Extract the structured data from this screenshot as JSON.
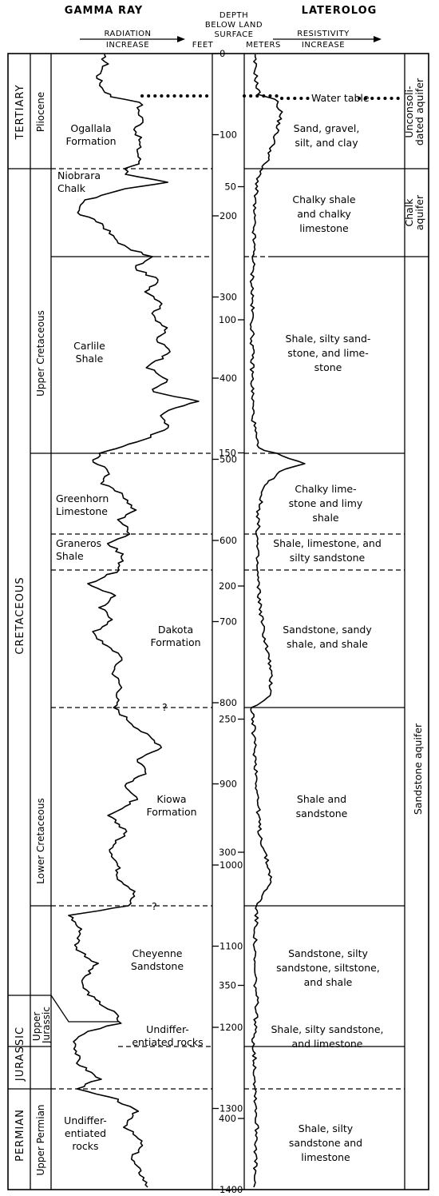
{
  "headers": {
    "gamma_ray": "GAMMA RAY",
    "radiation": "RADIATION",
    "increase_left": "INCREASE",
    "depth_line1": "DEPTH",
    "depth_line2": "BELOW LAND",
    "depth_line3": "SURFACE",
    "feet": "FEET",
    "meters": "METERS",
    "laterolog": "LATEROLOG",
    "resistivity": "RESISTIVITY",
    "increase_right": "INCREASE"
  },
  "systems": [
    {
      "label": "TERTIARY",
      "top_ft": 0,
      "bottom_ft": 165
    },
    {
      "label": "CRETACEOUS",
      "top_ft": 165,
      "bottom_ft": 1240
    },
    {
      "label": "JURASSIC",
      "top_ft": 1240,
      "bottom_ft": 1290
    },
    {
      "label": "PERMIAN",
      "top_ft": 1290,
      "bottom_ft": 1400
    }
  ],
  "series": [
    {
      "label": "Pliocene",
      "top_ft": 0,
      "bottom_ft": 165
    },
    {
      "label": "Upper Cretaceous",
      "top_ft": 165,
      "bottom_ft": 588
    },
    {
      "label": "Lower Cretaceous",
      "top_ft": 588,
      "bottom_ft": 1240
    },
    {
      "label": "Upper Jurassic",
      "top_ft": 1240,
      "bottom_ft": 1290
    },
    {
      "label": "Upper Permian",
      "top_ft": 1290,
      "bottom_ft": 1400
    }
  ],
  "formations": [
    {
      "lines": [
        "Ogallala",
        "Formation"
      ]
    },
    {
      "lines": [
        "Niobrara",
        "Chalk"
      ]
    },
    {
      "lines": [
        "Carlile",
        "Shale"
      ]
    },
    {
      "lines": [
        "Greenhorn",
        "Limestone"
      ]
    },
    {
      "lines": [
        "Graneros",
        "Shale"
      ]
    },
    {
      "lines": [
        "Dakota",
        "Formation"
      ]
    },
    {
      "lines": [
        "Kiowa",
        "Formation"
      ]
    },
    {
      "lines": [
        "Cheyenne",
        "Sandstone"
      ]
    },
    {
      "lines": [
        "Undiffer-",
        "entiated rocks"
      ]
    },
    {
      "lines": [
        "Undiffer-",
        "entiated",
        "rocks"
      ]
    }
  ],
  "lithology": [
    {
      "lines": [
        "Sand, gravel,",
        "silt, and clay"
      ]
    },
    {
      "lines": [
        "Chalky shale",
        "and chalky",
        "limestone"
      ]
    },
    {
      "lines": [
        "Shale, silty sand-",
        "stone, and lime-",
        "stone"
      ]
    },
    {
      "lines": [
        "Chalky lime-",
        "stone and limy",
        "shale"
      ]
    },
    {
      "lines": [
        "Shale, limestone, and",
        "silty sandstone"
      ]
    },
    {
      "lines": [
        "Sandstone, sandy",
        "shale, and shale"
      ]
    },
    {
      "lines": [
        "Shale and",
        "sandstone"
      ]
    },
    {
      "lines": [
        "Sandstone, silty",
        "sandstone, siltstone,",
        "and shale"
      ]
    },
    {
      "lines": [
        "Shale, silty sandstone,",
        "and limestone"
      ]
    },
    {
      "lines": [
        "Shale, silty",
        "sandstone and",
        "limestone"
      ]
    }
  ],
  "aquifers": [
    {
      "lines": [
        "Unconsoli-",
        "dated aquifer"
      ]
    },
    {
      "lines": [
        "Chalk",
        "aquifer"
      ]
    },
    {
      "lines": [
        "Sandstone  aquifer"
      ]
    }
  ],
  "water_table_label": "Water table",
  "question_marks": [
    "?",
    "?"
  ],
  "feet_ticks": [
    {
      "label": "0",
      "ft": 0
    },
    {
      "label": "100",
      "ft": 100
    },
    {
      "label": "200",
      "ft": 200
    },
    {
      "label": "300",
      "ft": 300
    },
    {
      "label": "400",
      "ft": 400
    },
    {
      "label": "500",
      "ft": 500
    },
    {
      "label": "600",
      "ft": 600
    },
    {
      "label": "700",
      "ft": 700
    },
    {
      "label": "800",
      "ft": 800
    },
    {
      "label": "900",
      "ft": 900
    },
    {
      "label": "1000",
      "ft": 1000
    },
    {
      "label": "1100",
      "ft": 1100
    },
    {
      "label": "1200",
      "ft": 1200
    },
    {
      "label": "1300",
      "ft": 1300
    },
    {
      "label": "1400",
      "ft": 1400
    }
  ],
  "meter_ticks": [
    {
      "label": "50",
      "m": 50
    },
    {
      "label": "100",
      "m": 100
    },
    {
      "label": "150",
      "m": 150
    },
    {
      "label": "200",
      "m": 200
    },
    {
      "label": "250",
      "m": 250
    },
    {
      "label": "300",
      "m": 300
    },
    {
      "label": "350",
      "m": 350
    },
    {
      "label": "400",
      "m": 400
    }
  ]
}
